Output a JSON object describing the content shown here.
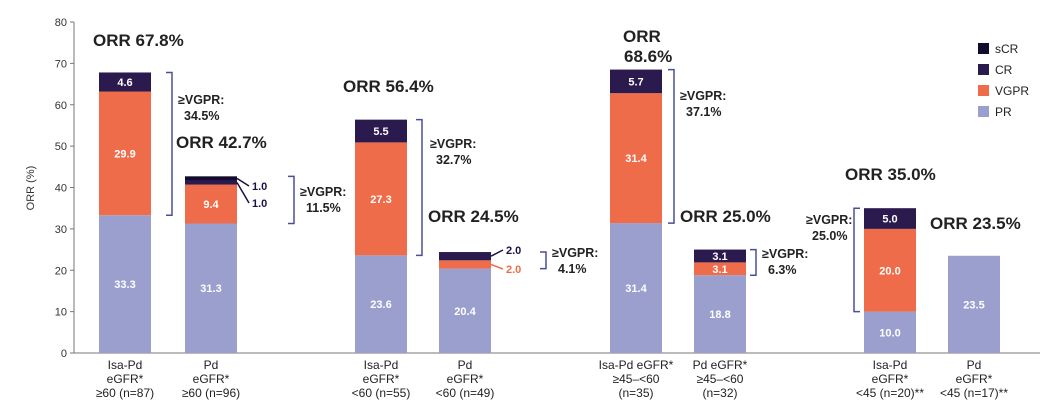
{
  "chart_data": {
    "type": "bar",
    "stacked": true,
    "ylabel": "ORR (%)",
    "ylim": [
      0,
      80
    ],
    "yticks": [
      0,
      10,
      20,
      30,
      40,
      50,
      60,
      70,
      80
    ],
    "series": [
      {
        "name": "PR",
        "color": "#9a9fce"
      },
      {
        "name": "VGPR",
        "color": "#ef6c4a"
      },
      {
        "name": "CR",
        "color": "#2a1a4e"
      },
      {
        "name": "sCR",
        "color": "#120b2e"
      }
    ],
    "legend": [
      "sCR",
      "CR",
      "VGPR",
      "PR"
    ],
    "bars": [
      {
        "label": [
          "Isa-Pd",
          "eGFR*",
          "≥60 (n=87)"
        ],
        "PR": 33.3,
        "VGPR": 29.9,
        "CR": 4.6,
        "sCR": 0,
        "labels": {
          "PR": "33.3",
          "VGPR": "29.9",
          "CR": "4.6"
        }
      },
      {
        "label": [
          "Pd",
          "eGFR*",
          "≥60 (n=96)"
        ],
        "PR": 31.3,
        "VGPR": 9.4,
        "CR": 1.0,
        "sCR": 1.0,
        "labels": {
          "PR": "31.3",
          "VGPR": "9.4"
        },
        "side_labels": [
          "1.0",
          "1.0"
        ]
      },
      {
        "label": [
          "Isa-Pd",
          "eGFR*",
          "<60 (n=55)"
        ],
        "PR": 23.6,
        "VGPR": 27.3,
        "CR": 5.5,
        "sCR": 0,
        "labels": {
          "PR": "23.6",
          "VGPR": "27.3",
          "CR": "5.5"
        }
      },
      {
        "label": [
          "Pd",
          "eGFR*",
          "<60 (n=49)"
        ],
        "PR": 20.4,
        "VGPR": 2.0,
        "CR": 2.0,
        "sCR": 0,
        "labels": {
          "PR": "20.4"
        },
        "side_labels": [
          "2.0",
          "2.0"
        ]
      },
      {
        "label": [
          "Isa-Pd eGFR*",
          "≥45–<60",
          "(n=35)"
        ],
        "PR": 31.4,
        "VGPR": 31.4,
        "CR": 5.7,
        "sCR": 0,
        "labels": {
          "PR": "31.4",
          "VGPR": "31.4",
          "CR": "5.7"
        }
      },
      {
        "label": [
          "Pd eGFR*",
          "≥45–<60",
          "(n=32)"
        ],
        "PR": 18.8,
        "VGPR": 3.1,
        "CR": 3.1,
        "sCR": 0,
        "labels": {
          "PR": "18.8",
          "VGPR": "3.1",
          "CR": "3.1"
        }
      },
      {
        "label": [
          "Isa-Pd",
          "eGFR*",
          "<45 (n=20)**"
        ],
        "PR": 10.0,
        "VGPR": 20.0,
        "CR": 5.0,
        "sCR": 0,
        "labels": {
          "PR": "10.0",
          "VGPR": "20.0",
          "CR": "5.0"
        }
      },
      {
        "label": [
          "Pd",
          "eGFR*",
          "<45 (n=17)**"
        ],
        "PR": 23.5,
        "VGPR": 0,
        "CR": 0,
        "sCR": 0,
        "labels": {
          "PR": "23.5"
        }
      }
    ],
    "annotations": {
      "orr": [
        "ORR 67.8%",
        "ORR 42.7%",
        "ORR 56.4%",
        "ORR 24.5%",
        "ORR",
        "68.6%",
        "ORR 25.0%",
        "ORR 35.0%",
        "ORR 23.5%"
      ],
      "vgpr": [
        "≥VGPR:",
        "34.5%",
        "≥VGPR:",
        "11.5%",
        "≥VGPR:",
        "32.7%",
        "≥VGPR:",
        "4.1%",
        "≥VGPR:",
        "37.1%",
        "≥VGPR:",
        "6.3%",
        "≥VGPR:",
        "25.0%"
      ]
    }
  }
}
